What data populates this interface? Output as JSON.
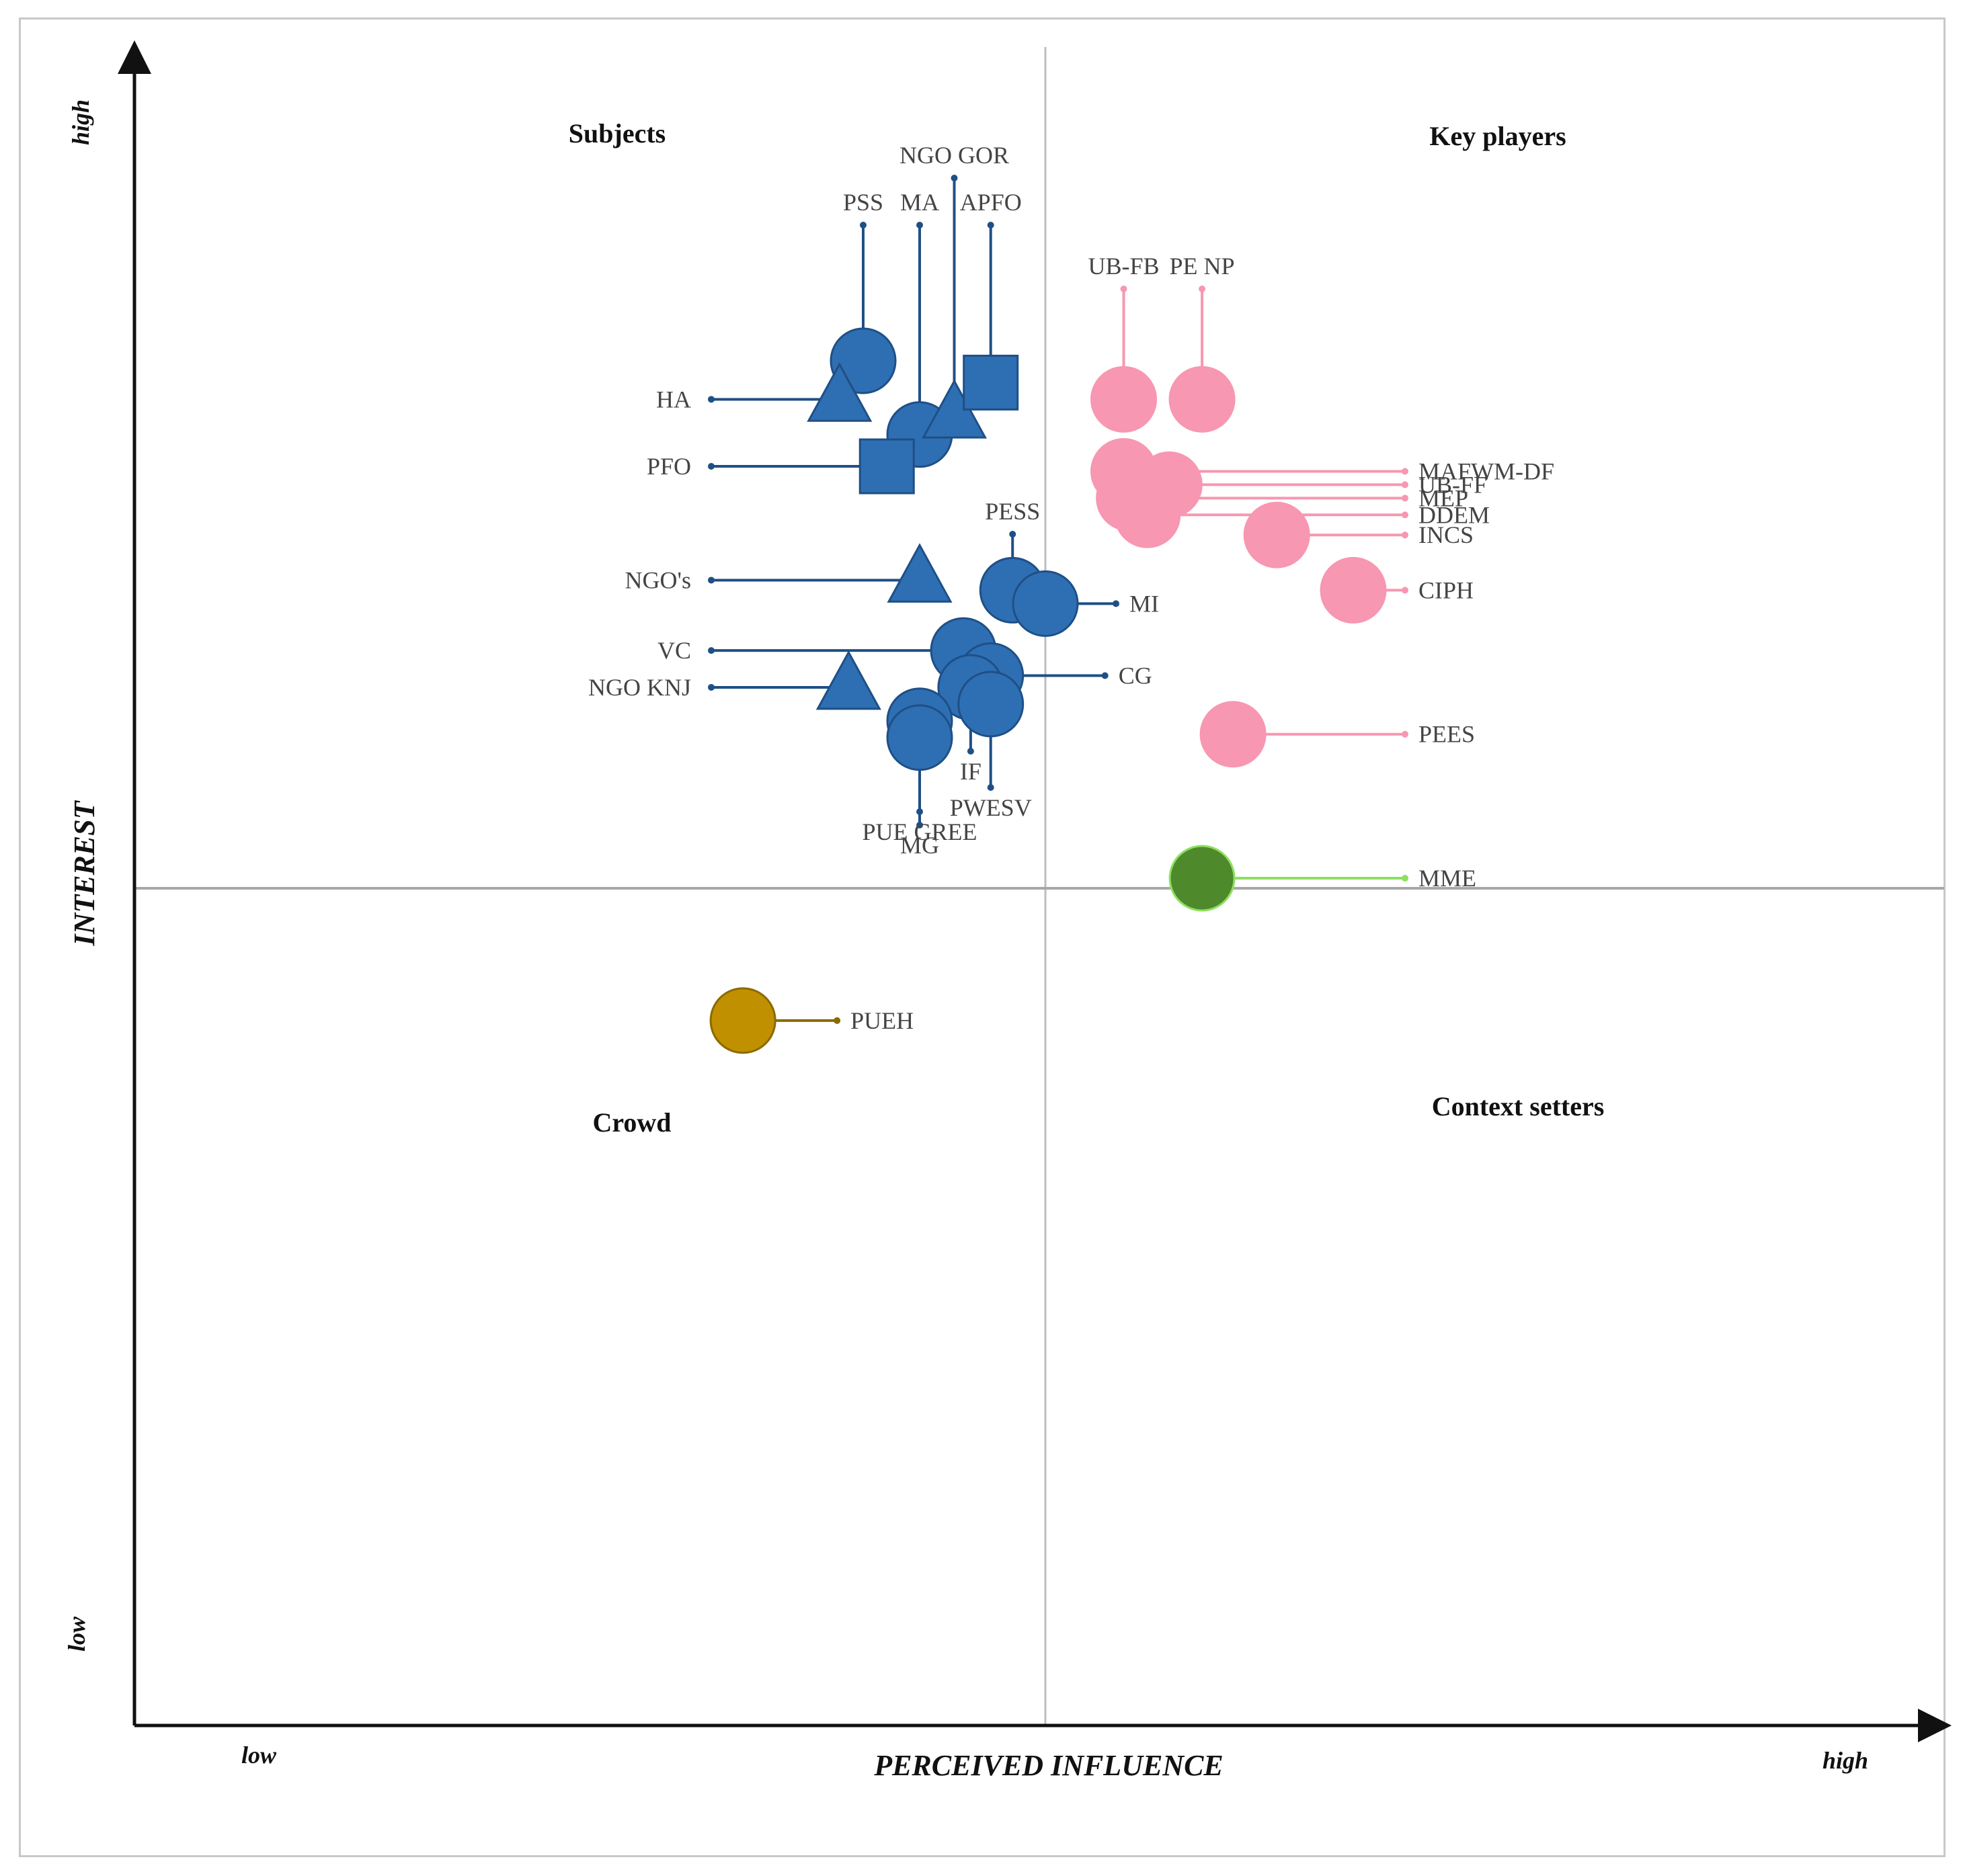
{
  "chart_data": {
    "type": "scatter",
    "xlabel": "PERCEIVED INFLUENCE",
    "ylabel": "INTEREST",
    "x_low_label": "low",
    "x_high_label": "high",
    "y_low_label": "low",
    "y_high_label": "high",
    "xlim": [
      0,
      100
    ],
    "ylim": [
      0,
      100
    ],
    "midpoint": [
      50,
      50
    ],
    "quadrants": {
      "top_left": "Subjects",
      "top_right": "Key players",
      "bottom_left": "Crowd",
      "bottom_right": "Context setters"
    },
    "colors": {
      "blue": "#2e6fb3",
      "blue_edge": "#1f4f86",
      "pink": "#f797b2",
      "green": "#4e8a2c",
      "green_line": "#8ee060",
      "gold": "#c09000",
      "gold_edge": "#8a6a00"
    },
    "series": [
      {
        "color": "blue",
        "points": [
          {
            "label": "PSS",
            "x": 40.0,
            "y": 81.5,
            "shape": "circle",
            "label_pos": "top"
          },
          {
            "label": "MA",
            "x": 43.1,
            "y": 77.1,
            "shape": "circle",
            "label_pos": "top"
          },
          {
            "label": "NGO GOR",
            "x": 45.0,
            "y": 78.2,
            "shape": "triangle",
            "label_pos": "top"
          },
          {
            "label": "APFO",
            "x": 47.0,
            "y": 80.2,
            "shape": "square",
            "label_pos": "top"
          },
          {
            "label": "HA",
            "x": 38.7,
            "y": 79.2,
            "shape": "triangle",
            "label_pos": "left"
          },
          {
            "label": "PFO",
            "x": 41.3,
            "y": 75.2,
            "shape": "square",
            "label_pos": "left"
          },
          {
            "label": "PESS",
            "x": 48.2,
            "y": 67.8,
            "shape": "circle",
            "label_pos": "top"
          },
          {
            "label": "MI",
            "x": 50.0,
            "y": 67.0,
            "shape": "circle",
            "label_pos": "right"
          },
          {
            "label": "NGO's",
            "x": 43.1,
            "y": 68.4,
            "shape": "triangle",
            "label_pos": "left"
          },
          {
            "label": "VC",
            "x": 45.5,
            "y": 64.2,
            "shape": "circle",
            "label_pos": "left"
          },
          {
            "label": "CG",
            "x": 47.0,
            "y": 62.7,
            "shape": "circle",
            "label_pos": "right"
          },
          {
            "label": "NGO KNJ",
            "x": 39.2,
            "y": 62.0,
            "shape": "triangle",
            "label_pos": "left"
          },
          {
            "label": "IF",
            "x": 45.9,
            "y": 62.0,
            "shape": "circle",
            "label_pos": "bottom"
          },
          {
            "label": "PWESV",
            "x": 47.0,
            "y": 61.0,
            "shape": "circle",
            "label_pos": "bottom"
          },
          {
            "label": "PUE GREE",
            "x": 43.1,
            "y": 60.0,
            "shape": "circle",
            "label_pos": "bottom"
          },
          {
            "label": "MG",
            "x": 43.1,
            "y": 59.0,
            "shape": "circle",
            "label_pos": "bottom"
          }
        ]
      },
      {
        "color": "pink",
        "points": [
          {
            "label": "UB-FB",
            "x": 54.3,
            "y": 79.2,
            "shape": "circle",
            "label_pos": "top"
          },
          {
            "label": "PE NP",
            "x": 58.6,
            "y": 79.2,
            "shape": "circle",
            "label_pos": "top"
          },
          {
            "label": "MAFWM-DF",
            "x": 54.3,
            "y": 74.9,
            "shape": "circle",
            "label_pos": "right"
          },
          {
            "label": "UB-FF",
            "x": 56.8,
            "y": 74.1,
            "shape": "circle",
            "label_pos": "right"
          },
          {
            "label": "MEP",
            "x": 54.6,
            "y": 73.3,
            "shape": "circle",
            "label_pos": "right"
          },
          {
            "label": "DDEM",
            "x": 55.6,
            "y": 72.3,
            "shape": "circle",
            "label_pos": "right"
          },
          {
            "label": "INCS",
            "x": 62.7,
            "y": 71.1,
            "shape": "circle",
            "label_pos": "right"
          },
          {
            "label": "CIPH",
            "x": 66.9,
            "y": 67.8,
            "shape": "circle",
            "label_pos": "right"
          },
          {
            "label": "PEES",
            "x": 60.3,
            "y": 59.2,
            "shape": "circle",
            "label_pos": "right"
          }
        ]
      },
      {
        "color": "green",
        "points": [
          {
            "label": "MME",
            "x": 58.6,
            "y": 50.6,
            "shape": "circle",
            "label_pos": "right"
          }
        ]
      },
      {
        "color": "gold",
        "points": [
          {
            "label": "PUEH",
            "x": 33.4,
            "y": 42.1,
            "shape": "circle",
            "label_pos": "right"
          }
        ]
      }
    ]
  }
}
